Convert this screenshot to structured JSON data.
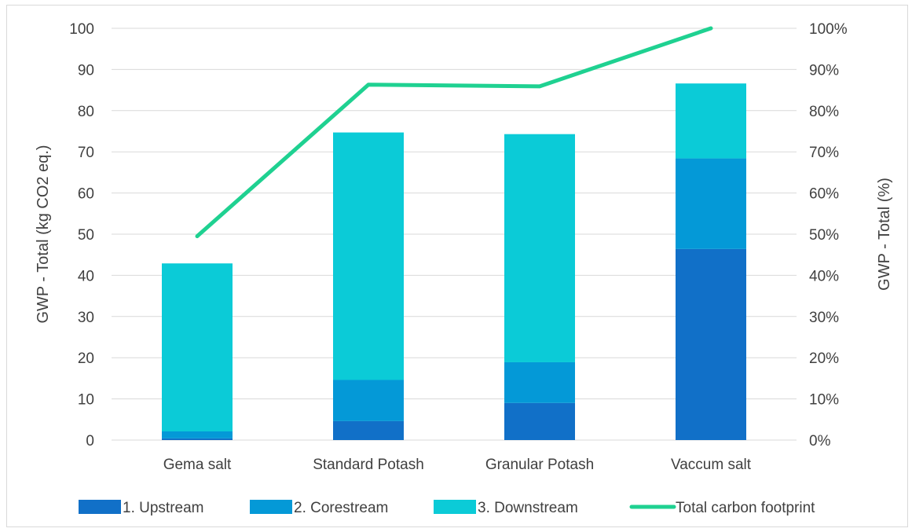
{
  "chart_data": {
    "type": "bar",
    "stacked": true,
    "categories": [
      "Gema salt",
      "Standard Potash",
      "Granular Potash",
      "Vaccum salt"
    ],
    "series": [
      {
        "name": "1. Upstream",
        "color": "#1170C8",
        "values": [
          0.4,
          4.6,
          9.0,
          46.4
        ]
      },
      {
        "name": "2. Corestream",
        "color": "#0499D7",
        "values": [
          1.7,
          10.0,
          9.9,
          22.0
        ]
      },
      {
        "name": "3. Downstream",
        "color": "#0BCBD7",
        "values": [
          40.8,
          60.1,
          55.4,
          18.2
        ]
      }
    ],
    "line_series": {
      "name": "Total carbon footprint",
      "color": "#1FD191",
      "axis": "right",
      "values": [
        0.495,
        0.863,
        0.859,
        1.0
      ]
    },
    "ylabel": "GWP - Total (kg CO2 eq.)",
    "ylabel_right": "GWP - Total (%)",
    "ylim": [
      0,
      100
    ],
    "ylim_right": [
      0,
      1
    ],
    "yticks": [
      "0",
      "10",
      "20",
      "30",
      "40",
      "50",
      "60",
      "70",
      "80",
      "90",
      "100"
    ],
    "yticks_right": [
      "0%",
      "10%",
      "20%",
      "30%",
      "40%",
      "50%",
      "60%",
      "70%",
      "80%",
      "90%",
      "100%"
    ],
    "grid": true,
    "legend_position": "bottom",
    "legend": [
      "1. Upstream",
      "2. Corestream",
      "3. Downstream",
      "Total carbon footprint"
    ]
  }
}
